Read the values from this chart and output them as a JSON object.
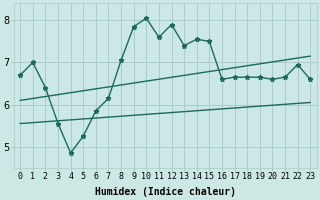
{
  "title": "",
  "xlabel": "Humidex (Indice chaleur)",
  "ylabel": "",
  "bg_color": "#cce8e4",
  "line_color": "#1a6b5a",
  "grid_color": "#aaccca",
  "x_ticks": [
    0,
    1,
    2,
    3,
    4,
    5,
    6,
    7,
    8,
    9,
    10,
    11,
    12,
    13,
    14,
    15,
    16,
    17,
    18,
    19,
    20,
    21,
    22,
    23
  ],
  "y_ticks": [
    5,
    6,
    7,
    8
  ],
  "ylim": [
    4.5,
    8.4
  ],
  "xlim": [
    -0.5,
    23.5
  ],
  "main_line_x": [
    0,
    1,
    2,
    3,
    4,
    5,
    6,
    7,
    8,
    9,
    10,
    11,
    12,
    13,
    14,
    15,
    16,
    17,
    18,
    19,
    20,
    21,
    22,
    23
  ],
  "main_line_y": [
    6.7,
    7.0,
    6.4,
    5.55,
    4.85,
    5.25,
    5.85,
    6.15,
    7.05,
    7.85,
    8.05,
    7.6,
    7.9,
    7.4,
    7.55,
    7.5,
    6.6,
    6.65,
    6.65,
    6.65,
    6.6,
    6.65,
    6.95,
    6.6
  ],
  "upper_line_x": [
    0,
    23
  ],
  "upper_line_y": [
    6.1,
    7.15
  ],
  "lower_line_x": [
    0,
    23
  ],
  "lower_line_y": [
    5.55,
    6.05
  ],
  "marker_style": "*",
  "marker_size": 3.5,
  "linewidth": 1.0,
  "xlabel_fontsize": 7,
  "tick_fontsize": 6
}
